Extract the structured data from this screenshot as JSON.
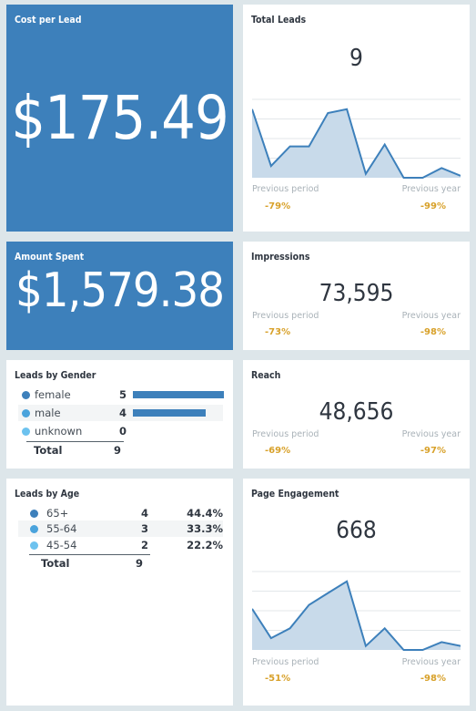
{
  "colors": {
    "accent": "#3d80bb",
    "comparison": "#d8a12a",
    "dot_dark": "#3d80bb",
    "dot_mid": "#4aa3dc",
    "dot_light": "#6cc2ef"
  },
  "cost_per_lead": {
    "title": "Cost per Lead",
    "value": "$175.49"
  },
  "amount_spent": {
    "title": "Amount Spent",
    "value": "$1,579.38"
  },
  "total_leads": {
    "title": "Total Leads",
    "value": "9",
    "prev_period_label": "Previous period",
    "prev_period_value": "-79%",
    "prev_year_label": "Previous year",
    "prev_year_value": "-99%",
    "sparkline": [
      3.5,
      0.6,
      1.6,
      1.6,
      3.3,
      3.5,
      0.2,
      1.7,
      0,
      0,
      0.5,
      0.1
    ]
  },
  "impressions": {
    "title": "Impressions",
    "value": "73,595",
    "prev_period_label": "Previous period",
    "prev_period_value": "-73%",
    "prev_year_label": "Previous year",
    "prev_year_value": "-98%"
  },
  "reach": {
    "title": "Reach",
    "value": "48,656",
    "prev_period_label": "Previous period",
    "prev_period_value": "-69%",
    "prev_year_label": "Previous year",
    "prev_year_value": "-97%"
  },
  "page_engagement": {
    "title": "Page Engagement",
    "value": "668",
    "prev_period_label": "Previous period",
    "prev_period_value": "-51%",
    "prev_year_label": "Previous year",
    "prev_year_value": "-98%",
    "sparkline": [
      2.1,
      0.6,
      1.1,
      2.3,
      2.9,
      3.5,
      0.2,
      1.1,
      0,
      0,
      0.4,
      0.2
    ]
  },
  "leads_by_gender": {
    "title": "Leads by Gender",
    "rows": [
      {
        "label": "female",
        "count": "5",
        "fraction": 1.0
      },
      {
        "label": "male",
        "count": "4",
        "fraction": 0.8
      },
      {
        "label": "unknown",
        "count": "0",
        "fraction": 0
      }
    ],
    "total_label": "Total",
    "total_value": "9"
  },
  "leads_by_age": {
    "title": "Leads by Age",
    "rows": [
      {
        "label": "65+",
        "count": "4",
        "percent": "44.4%"
      },
      {
        "label": "55-64",
        "count": "3",
        "percent": "33.3%"
      },
      {
        "label": "45-54",
        "count": "2",
        "percent": "22.2%"
      }
    ],
    "total_label": "Total",
    "total_value": "9"
  }
}
